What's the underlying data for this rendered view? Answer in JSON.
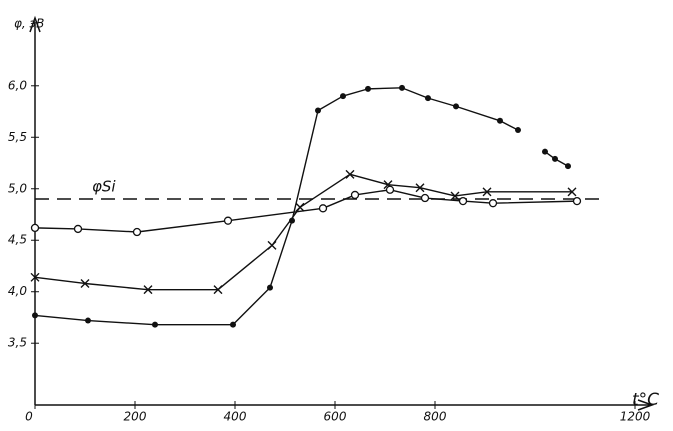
{
  "chart_data": {
    "type": "line",
    "y_label": "φ, эВ",
    "x_label": "t°C",
    "xlim": [
      0,
      1200
    ],
    "ylim": [
      2.9,
      6.6
    ],
    "xticks": [
      0,
      200,
      400,
      600,
      800,
      1200
    ],
    "yticks": [
      {
        "value": 3.5,
        "label": "3,5"
      },
      {
        "value": 4.0,
        "label": "4,0"
      },
      {
        "value": 4.5,
        "label": "4,5"
      },
      {
        "value": 5.0,
        "label": "5,0"
      },
      {
        "value": 5.5,
        "label": "5,5"
      },
      {
        "value": 6.0,
        "label": "6,0"
      }
    ],
    "reference_line": {
      "label": "φSi",
      "value": 4.9,
      "color": "#111111"
    },
    "series": [
      {
        "color": "#111111",
        "marker": "dot",
        "x": [
          0,
          106,
          240,
          396,
          470,
          514,
          566,
          616,
          666,
          734,
          786,
          842,
          930,
          966,
          null,
          1020,
          1040,
          1066
        ],
        "values": [
          3.77,
          3.72,
          3.68,
          3.68,
          4.04,
          4.69,
          5.76,
          5.9,
          5.97,
          5.98,
          5.88,
          5.8,
          5.66,
          5.57,
          null,
          5.36,
          5.29,
          5.22
        ]
      },
      {
        "color": "#111111",
        "marker": "cross",
        "x": [
          0,
          100,
          226,
          366,
          474,
          530,
          630,
          706,
          770,
          840,
          904,
          1074
        ],
        "values": [
          4.14,
          4.08,
          4.02,
          4.02,
          4.45,
          4.82,
          5.14,
          5.04,
          5.01,
          4.93,
          4.97,
          4.97
        ]
      },
      {
        "color": "#111111",
        "marker": "circle",
        "x": [
          0,
          86,
          204,
          386,
          576,
          640,
          710,
          780,
          856,
          916,
          1084
        ],
        "values": [
          4.62,
          4.61,
          4.58,
          4.69,
          4.81,
          4.94,
          4.99,
          4.91,
          4.88,
          4.86,
          4.88
        ]
      }
    ]
  }
}
